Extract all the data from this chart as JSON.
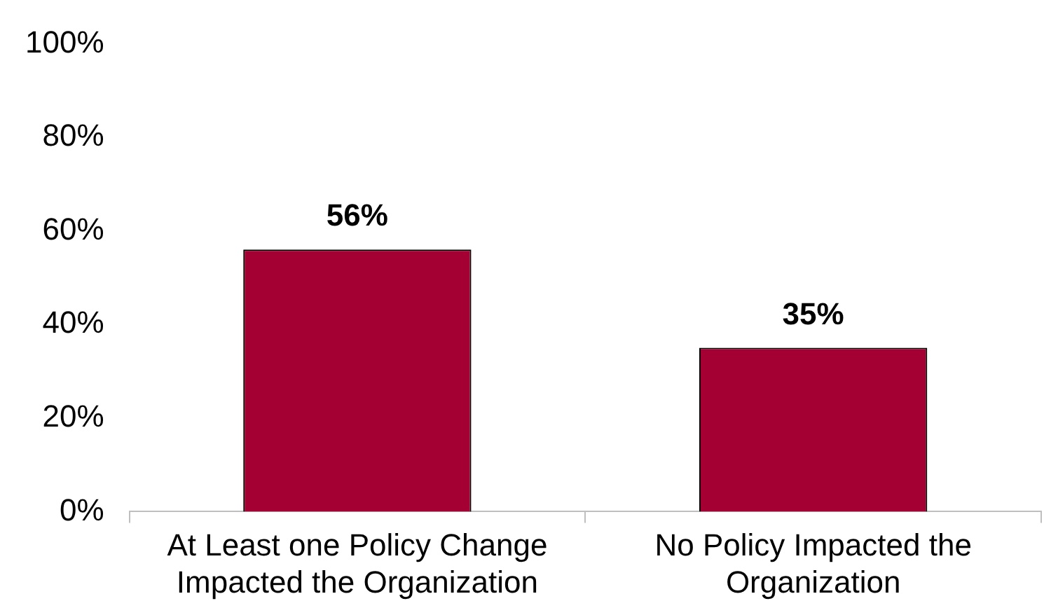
{
  "chart_data": {
    "type": "bar",
    "categories": [
      "At Least one Policy Change Impacted the Organization",
      "No Policy Impacted the Organization"
    ],
    "values": [
      56,
      35
    ],
    "color": "#a50034",
    "value_labels": [
      "56%",
      "35%"
    ],
    "ylim": [
      0,
      100
    ],
    "yticks": [
      {
        "value": 0,
        "label": "0%"
      },
      {
        "value": 20,
        "label": "20%"
      },
      {
        "value": 40,
        "label": "40%"
      },
      {
        "value": 60,
        "label": "60%"
      },
      {
        "value": 80,
        "label": "80%"
      },
      {
        "value": 100,
        "label": "100%"
      }
    ],
    "grid": false,
    "legend": false
  }
}
